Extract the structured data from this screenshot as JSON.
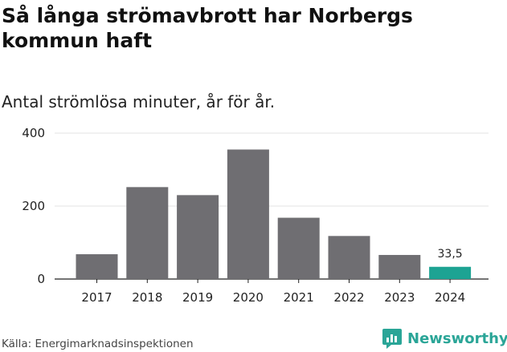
{
  "header": {
    "title": "Så långa strömavbrott har Norbergs kommun haft",
    "subtitle": "Antal strömlösa minuter, år för år."
  },
  "footer": {
    "source": "Källa: Energimarknadsinspektionen",
    "brand": "Newsworthy",
    "brand_color": "#2aa597"
  },
  "chart_data": {
    "type": "bar",
    "title": "Så långa strömavbrott har Norbergs kommun haft",
    "subtitle": "Antal strömlösa minuter, år för år.",
    "xlabel": "",
    "ylabel": "",
    "categories": [
      "2017",
      "2018",
      "2019",
      "2020",
      "2021",
      "2022",
      "2023",
      "2024"
    ],
    "values": [
      68,
      252,
      230,
      355,
      168,
      118,
      66,
      33.5
    ],
    "ylim": [
      0,
      400
    ],
    "yticks": [
      0,
      200,
      400
    ],
    "grid": true,
    "labeled": [
      {
        "index": 7,
        "label": "33,5"
      }
    ],
    "colors": {
      "default": "#6f6e72",
      "highlight": "#1da393"
    },
    "highlight_index": 7
  }
}
